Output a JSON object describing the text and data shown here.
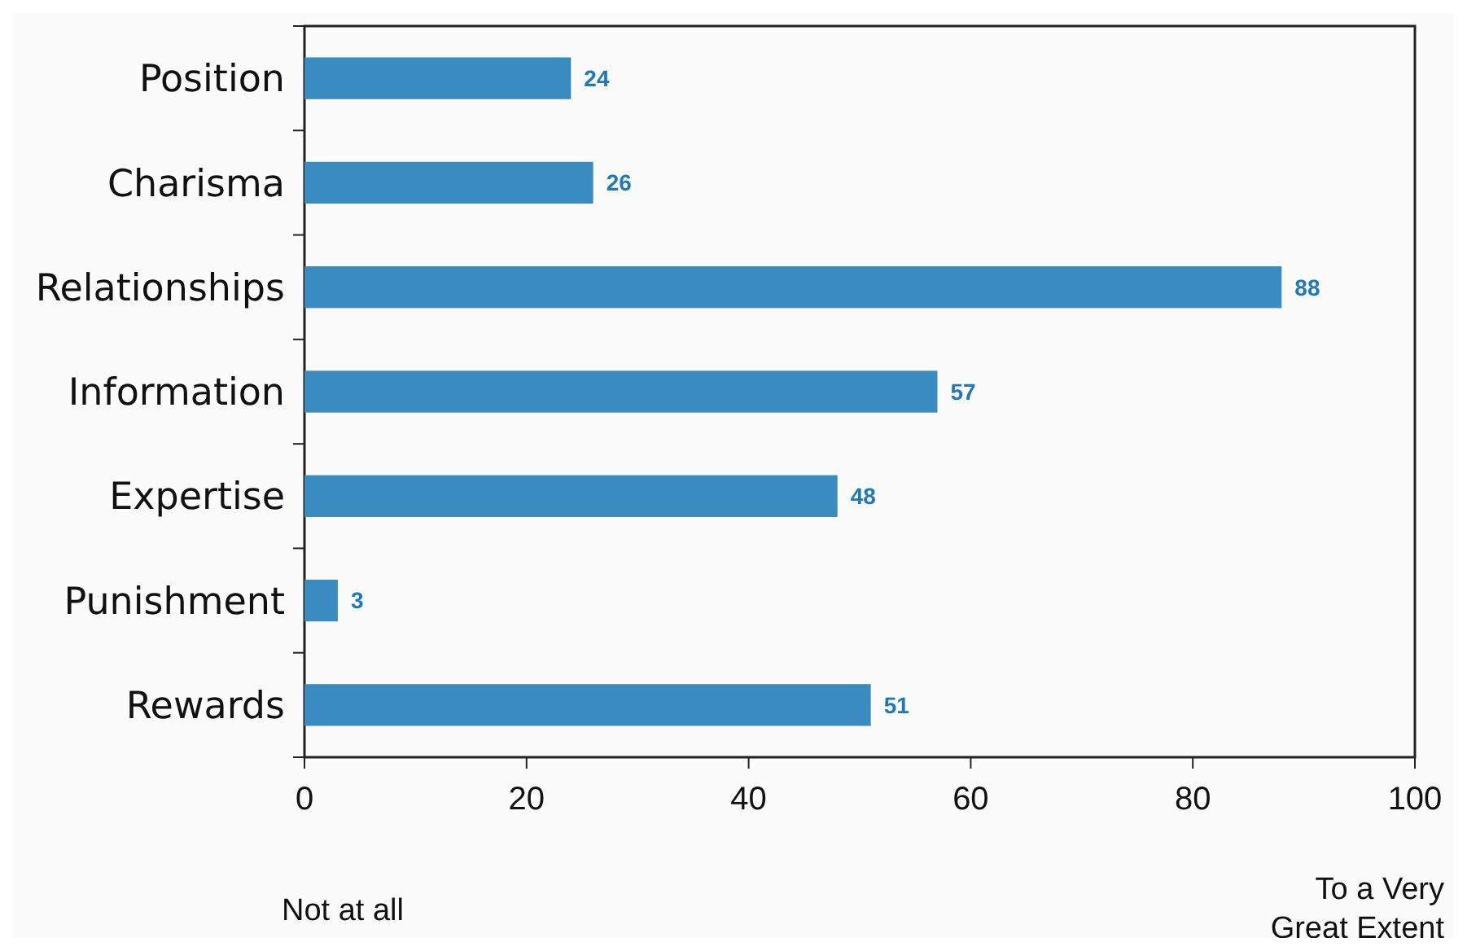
{
  "chart_data": {
    "type": "bar",
    "orientation": "horizontal",
    "categories": [
      "Position",
      "Charisma",
      "Relationships",
      "Information",
      "Expertise",
      "Punishment",
      "Rewards"
    ],
    "values": [
      24,
      26,
      88,
      57,
      48,
      3,
      51
    ],
    "color": "#3a8cc0",
    "xlim": [
      0,
      100
    ],
    "xticks": [
      0,
      20,
      40,
      60,
      80,
      100
    ],
    "data_labels": true,
    "grid": false,
    "annotations": [
      "Not at all",
      "To a Very\nGreat Extent"
    ]
  }
}
